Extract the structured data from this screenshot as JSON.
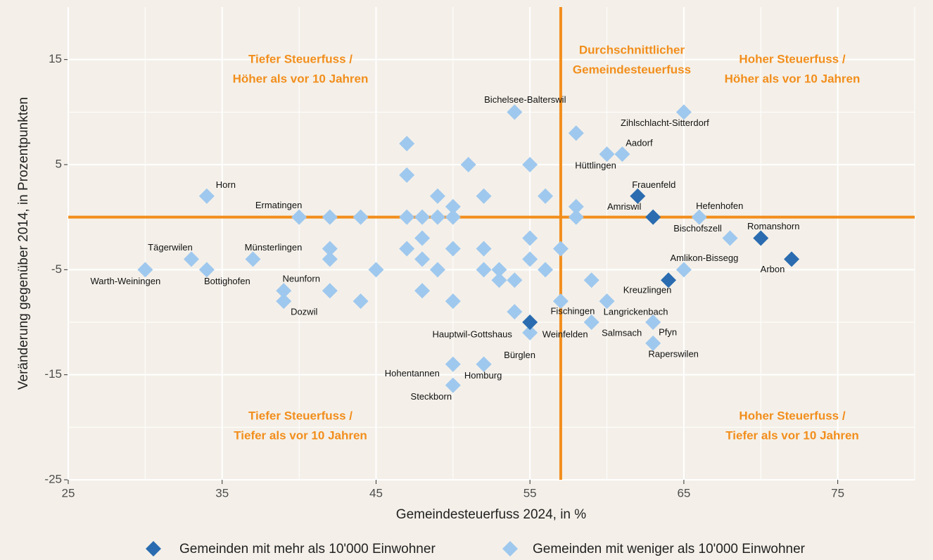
{
  "chart_data": {
    "type": "scatter",
    "x_label": "Gemeindesteuerfuss 2024, in %",
    "y_label": "Veränderung gegenüber 2014, in Prozentpunkten",
    "xlim": [
      25,
      80
    ],
    "xticks": [
      25,
      35,
      45,
      55,
      65,
      75
    ],
    "xminor": [
      30,
      40,
      50,
      60,
      70,
      80
    ],
    "ylim": [
      -25,
      20
    ],
    "yticks": [
      -25,
      -15,
      -5,
      5,
      15
    ],
    "yminor": [
      -20,
      -10,
      0,
      10
    ],
    "grid": true,
    "legend": "bottom",
    "vline": 57,
    "hline": 0,
    "line_color": "#f28e1c",
    "annotations": [
      {
        "lines": [
          "Tiefer Steuerfuss /",
          "Höher als vor 10 Jahren"
        ]
      },
      {
        "lines": [
          "Durchschnittlicher",
          "Gemeindesteuerfuss"
        ]
      },
      {
        "lines": [
          "Hoher Steuerfuss /",
          "Höher als vor 10 Jahren"
        ]
      },
      {
        "lines": [
          "Tiefer Steuerfuss /",
          "Tiefer als vor 10 Jahren"
        ]
      },
      {
        "lines": [
          "Hoher Steuerfuss /",
          "Tiefer als vor 10 Jahren"
        ]
      }
    ],
    "series": [
      {
        "name": "Gemeinden mit mehr als 10'000 Einwohner",
        "color": "#2b6cb0",
        "x": [
          62,
          63,
          70,
          72,
          64,
          55
        ],
        "values": [
          2,
          0,
          -2,
          -4,
          -6,
          -10
        ],
        "labels": [
          "Frauenfeld",
          "Amriswil",
          "Romanshorn",
          "Arbon",
          "Kreuzlingen",
          "Weinfelden"
        ]
      },
      {
        "name": "Gemeinden mit weniger als 10'000 Einwohner",
        "color": "#9fc8ee",
        "x": [
          54,
          65,
          58,
          60,
          61,
          47,
          47,
          51,
          55,
          34,
          49,
          52,
          56,
          50,
          58,
          40,
          42,
          44,
          47,
          48,
          49,
          50,
          58,
          66,
          48,
          55,
          68,
          33,
          37,
          42,
          42,
          47,
          50,
          52,
          57,
          48,
          55,
          30,
          34,
          45,
          49,
          52,
          53,
          56,
          65,
          53,
          54,
          59,
          39,
          42,
          48,
          39,
          44,
          50,
          57,
          60,
          54,
          59,
          63,
          55,
          63,
          50,
          52,
          52,
          50
        ],
        "values": [
          10,
          10,
          8,
          6,
          6,
          7,
          4,
          5,
          5,
          2,
          2,
          2,
          2,
          1,
          1,
          0,
          0,
          0,
          0,
          0,
          0,
          0,
          0,
          0,
          -2,
          -2,
          -2,
          -4,
          -4,
          -3,
          -4,
          -3,
          -3,
          -3,
          -3,
          -4,
          -4,
          -5,
          -5,
          -5,
          -5,
          -5,
          -5,
          -5,
          -5,
          -6,
          -6,
          -6,
          -7,
          -7,
          -7,
          -8,
          -8,
          -8,
          -8,
          -8,
          -9,
          -10,
          -10,
          -11,
          -12,
          -14,
          -14,
          -14,
          -16
        ],
        "labels": [
          "Bichelsee-Balterswil",
          "Zihlschlacht-Sitterdorf",
          null,
          "Hüttlingen",
          "Aadorf",
          null,
          null,
          null,
          null,
          "Horn",
          null,
          null,
          null,
          null,
          null,
          "Ermatingen",
          null,
          null,
          null,
          null,
          null,
          null,
          null,
          "Hefenhofen",
          null,
          null,
          "Bischofszell",
          "Tägerwilen",
          "Münsterlingen",
          null,
          null,
          null,
          null,
          null,
          null,
          null,
          null,
          "Warth-Weiningen",
          "Bottighofen",
          null,
          null,
          null,
          null,
          null,
          "Amlikon-Bissegg",
          null,
          null,
          null,
          "Neunforn",
          null,
          null,
          "Dozwil",
          null,
          null,
          "Fischingen",
          "Langrickenbach",
          null,
          "Salmsach",
          "Pfyn",
          "Hauptwil-Gottshaus",
          "Raperswilen",
          "Hohentannen",
          "Bürglen",
          "Homburg",
          "Steckborn"
        ]
      }
    ]
  }
}
